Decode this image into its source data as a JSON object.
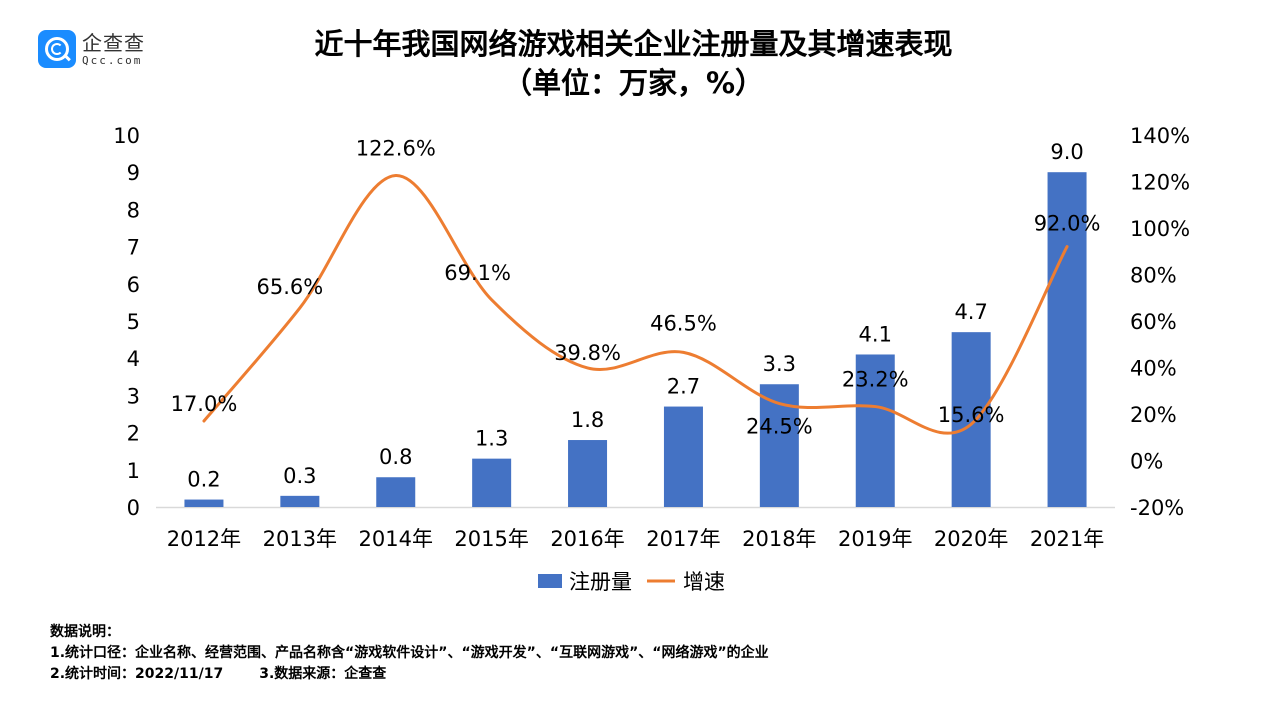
{
  "logo": {
    "cn": "企查查",
    "en": "Qcc.com"
  },
  "header": {
    "title": "近十年我国网络游戏相关企业注册量及其增速表现",
    "subtitle": "（单位：万家，%）"
  },
  "colors": {
    "bar": "#4472c4",
    "line": "#ed7d31",
    "axis": "#d9d9d9"
  },
  "chart_data": {
    "type": "bar",
    "title": "近十年我国网络游戏相关企业注册量及其增速表现",
    "subtitle": "（单位：万家，%）",
    "categories": [
      "2012年",
      "2013年",
      "2014年",
      "2015年",
      "2016年",
      "2017年",
      "2018年",
      "2019年",
      "2020年",
      "2021年"
    ],
    "series": [
      {
        "name": "注册量",
        "type": "bar",
        "axis": "left",
        "values": [
          0.2,
          0.3,
          0.8,
          1.3,
          1.8,
          2.7,
          3.3,
          4.1,
          4.7,
          9.0
        ],
        "labels": [
          "0.2",
          "0.3",
          "0.8",
          "1.3",
          "1.8",
          "2.7",
          "3.3",
          "4.1",
          "4.7",
          "9.0"
        ]
      },
      {
        "name": "增速",
        "type": "line",
        "smooth": true,
        "axis": "right",
        "values": [
          17.0,
          65.6,
          122.6,
          69.1,
          39.8,
          46.5,
          24.5,
          23.2,
          15.6,
          92.0
        ],
        "labels": [
          "17.0%",
          "65.6%",
          "122.6%",
          "69.1%",
          "39.8%",
          "46.5%",
          "24.5%",
          "23.2%",
          "15.6%",
          "92.0%"
        ]
      }
    ],
    "y_left": {
      "min": 0,
      "max": 10,
      "ticks": [
        "0",
        "1",
        "2",
        "3",
        "4",
        "5",
        "6",
        "7",
        "8",
        "9",
        "10"
      ]
    },
    "y_right": {
      "min": -20,
      "max": 140,
      "ticks": [
        "-20%",
        "0%",
        "20%",
        "40%",
        "60%",
        "80%",
        "100%",
        "120%",
        "140%"
      ]
    },
    "xlabel": "",
    "ylabel": "",
    "grid": false,
    "legend": {
      "position": "bottom",
      "items": [
        "注册量",
        "增速"
      ]
    }
  },
  "notes": {
    "heading": "数据说明：",
    "line1": "1.统计口径：企业名称、经营范围、产品名称含“游戏软件设计”、“游戏开发”、“互联网游戏”、“网络游戏”的企业",
    "line2a": "2.统计时间：2022/11/17",
    "line2b": "3.数据来源：企查查"
  }
}
